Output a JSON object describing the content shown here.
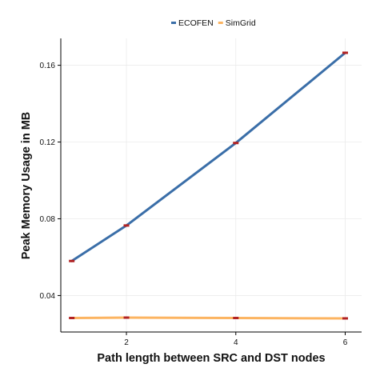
{
  "chart_data": {
    "type": "line",
    "title": "",
    "xlabel": "Path length between SRC and DST nodes",
    "ylabel": "Peak Memory Usage in MB",
    "x": [
      1,
      2,
      4,
      6
    ],
    "xlim": [
      0.8,
      6.3
    ],
    "ylim": [
      0.021,
      0.174
    ],
    "xticks": [
      2,
      4,
      6
    ],
    "yticks": [
      0.04,
      0.08,
      0.12,
      0.16
    ],
    "xtick_labels": [
      "2",
      "4",
      "6"
    ],
    "ytick_labels": [
      "0.04",
      "0.08",
      "0.12",
      "0.16"
    ],
    "grid": true,
    "legend_position": "top",
    "series": [
      {
        "name": "ECOFEN",
        "color": "#3a6ea8",
        "values": [
          0.058,
          0.0765,
          0.1195,
          0.1665
        ]
      },
      {
        "name": "SimGrid",
        "color": "#fcb461",
        "values": [
          0.0283,
          0.0285,
          0.0283,
          0.0281
        ]
      }
    ],
    "marker_color": "#b22222"
  }
}
